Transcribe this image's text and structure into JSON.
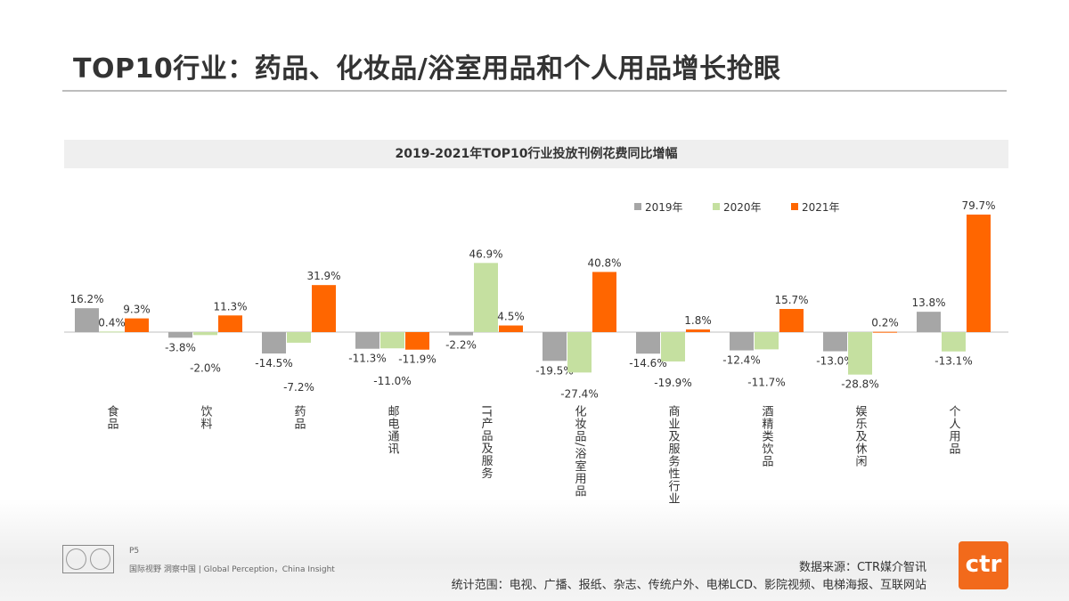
{
  "title": "TOP10行业：药品、化妆品/浴室用品和个人用品增长抢眼",
  "chart_data": {
    "type": "bar",
    "title": "2019-2021年TOP10行业投放刊例花费同比增幅",
    "categories": [
      "食品",
      "饮料",
      "药品",
      "邮电通讯",
      "IT产品及服务",
      "化妆品/浴室用品",
      "商业及服务性行业",
      "酒精类饮品",
      "娱乐及休闲",
      "个人用品"
    ],
    "series": [
      {
        "name": "2019年",
        "color": "#a6a6a6",
        "values": [
          16.2,
          -3.8,
          -14.5,
          -11.3,
          -2.2,
          -19.5,
          -14.6,
          -12.4,
          -13.0,
          13.8
        ]
      },
      {
        "name": "2020年",
        "color": "#c5e0a0",
        "values": [
          0.4,
          -2.0,
          -7.2,
          -11.0,
          46.9,
          -27.4,
          -19.9,
          -11.7,
          -28.8,
          -13.1
        ]
      },
      {
        "name": "2021年",
        "color": "#ff6600",
        "values": [
          9.3,
          11.3,
          31.9,
          -11.9,
          4.5,
          40.8,
          1.8,
          15.7,
          0.2,
          79.7
        ]
      }
    ],
    "unit": "%",
    "legend": "top-right",
    "grid": false
  },
  "footer": {
    "page": "P5",
    "tagline": "国际视野 洞察中国 | Global Perception，China Insight",
    "source": "数据来源：CTR媒介智讯",
    "scope": "统计范围：电视、广播、报纸、杂志、传统户外、电梯LCD、影院视频、电梯海报、互联网站",
    "logo": "ctr"
  }
}
